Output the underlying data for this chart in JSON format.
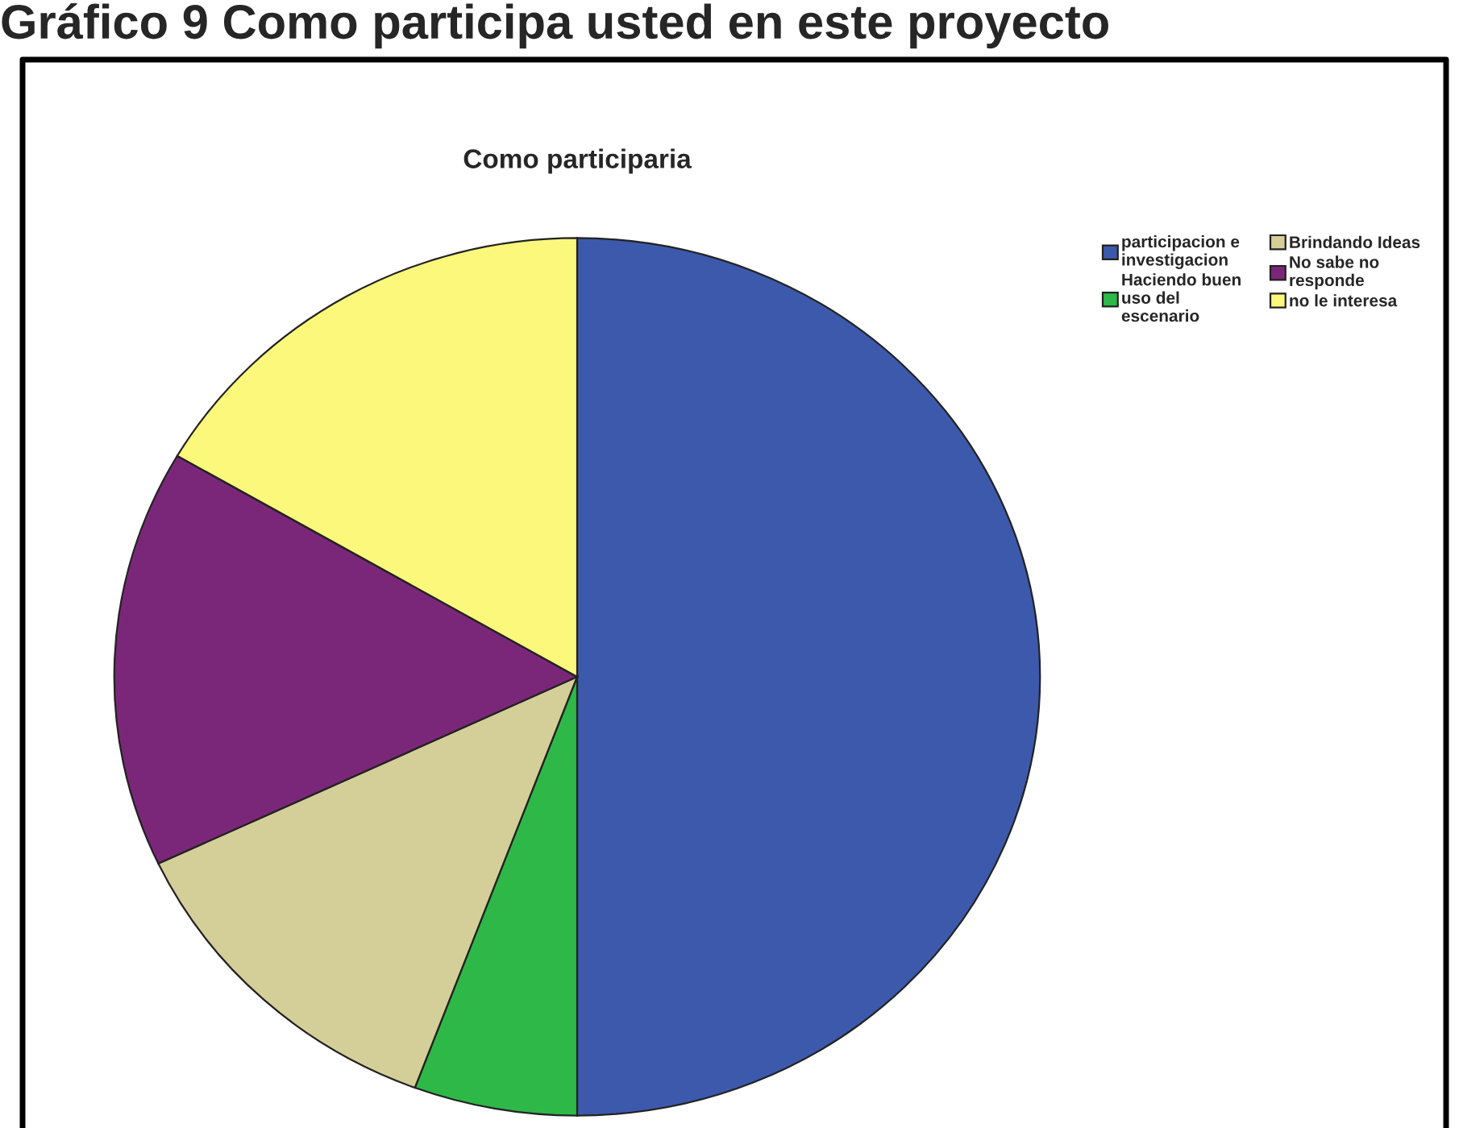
{
  "chart_data": {
    "type": "pie",
    "title": "Como participaria",
    "annotations": [
      "Gráfico 9 Como participa usted en este proyecto"
    ],
    "categories": [
      "participacion e investigacion",
      "Haciendo buen uso del escenario",
      "Brindando Ideas",
      "No sabe no responde",
      "no le interesa"
    ],
    "values": [
      50,
      5.7,
      12.3,
      15.4,
      16.6
    ],
    "colors": [
      "#3d59ab",
      "#2eb848",
      "#d4cf98",
      "#7b2779",
      "#fbf87c"
    ],
    "legend": "top right"
  }
}
